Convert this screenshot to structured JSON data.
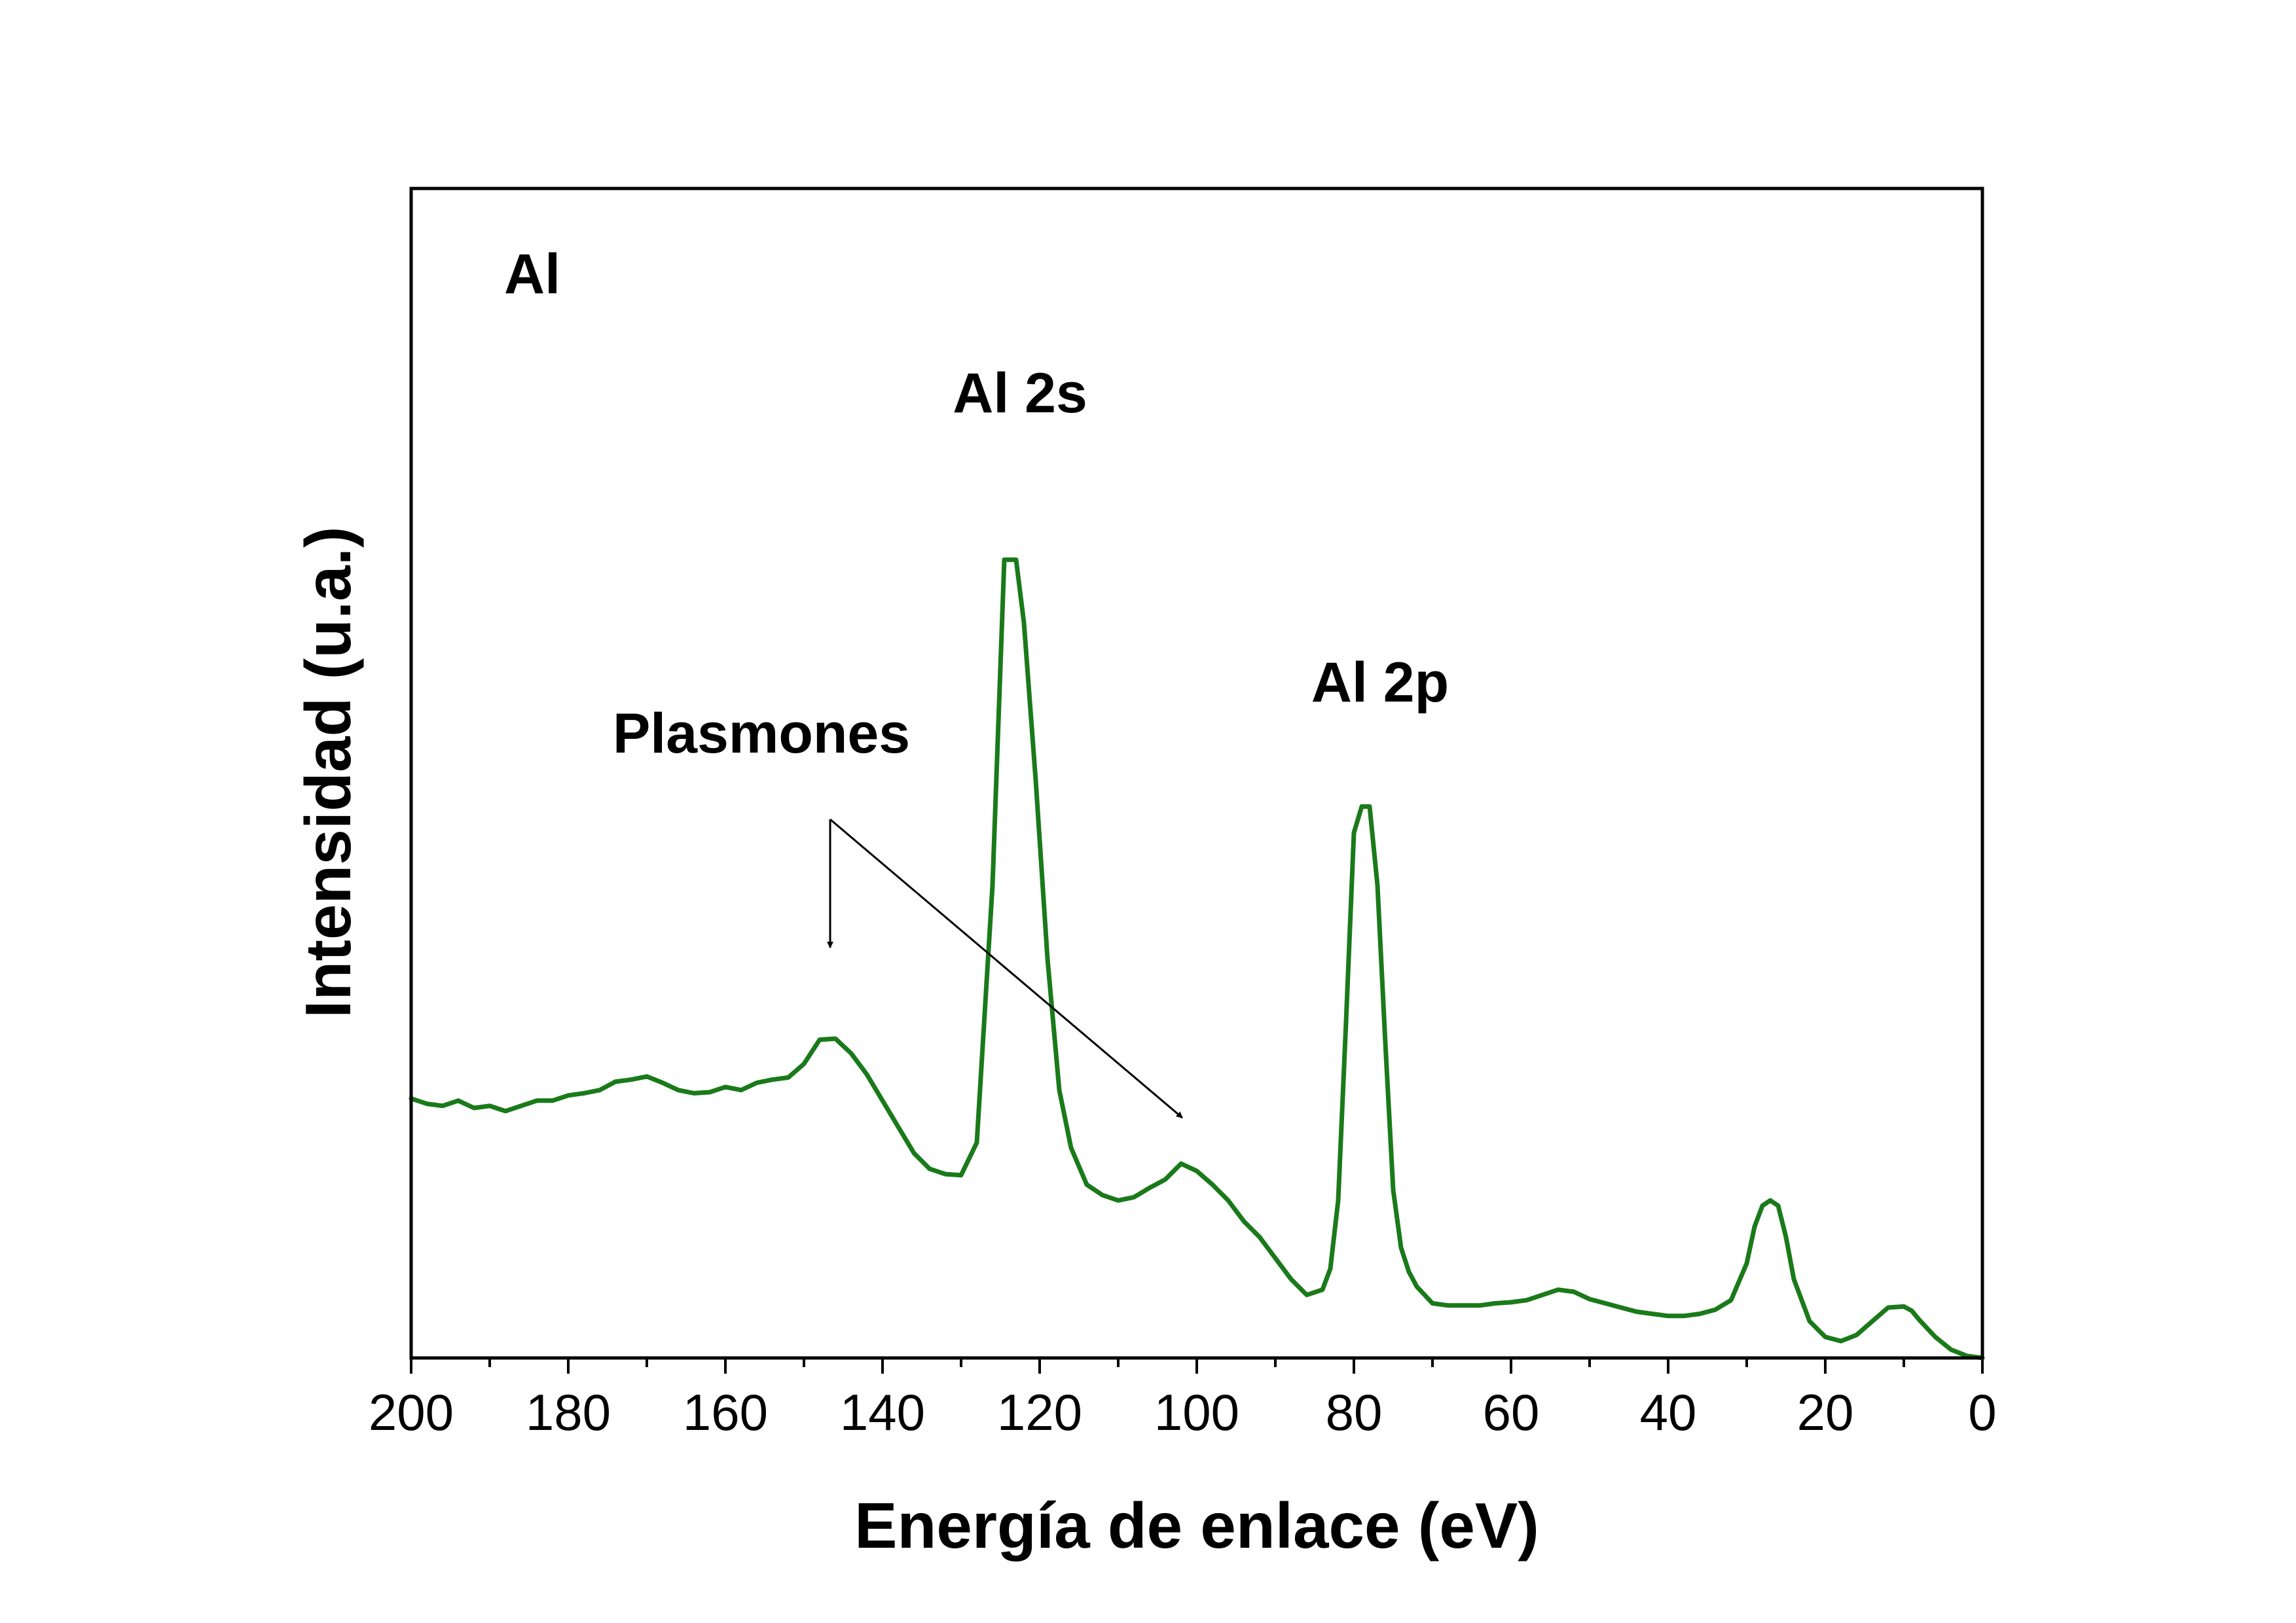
{
  "chart_data": {
    "type": "line",
    "title": "",
    "xlabel": "Energía de enlace (eV)",
    "ylabel": "Intensidad (u.a.)",
    "xlim": [
      200,
      0
    ],
    "ylim": [
      0,
      100
    ],
    "x_ticks": [
      200,
      180,
      160,
      140,
      120,
      100,
      80,
      60,
      40,
      20,
      0
    ],
    "x_tick_labels": [
      "200",
      "180",
      "160",
      "140",
      "120",
      "100",
      "80",
      "60",
      "40",
      "20",
      "0"
    ],
    "grid": false,
    "legend": "none",
    "series": [
      {
        "name": "Al",
        "color": "#1a7a1a",
        "x": [
          200,
          198,
          196,
          194,
          192,
          190,
          188,
          186,
          184,
          182,
          180,
          178,
          176,
          174,
          172,
          170,
          168,
          166,
          164,
          162,
          160,
          158,
          156,
          154,
          152,
          150,
          148,
          146,
          144,
          142,
          140,
          138,
          136,
          134,
          132,
          130,
          128,
          126,
          124.5,
          123,
          122,
          120.5,
          119,
          117.5,
          116,
          114,
          112,
          110,
          108,
          106,
          104,
          102,
          100,
          98,
          96,
          94,
          92,
          90,
          88,
          86,
          84,
          83,
          82,
          81,
          80,
          79,
          78,
          77,
          76,
          75,
          74,
          73,
          72,
          70,
          68,
          66,
          64,
          62,
          60,
          58,
          56,
          54,
          52,
          50,
          48,
          46,
          44,
          42,
          40,
          38,
          36,
          34,
          32,
          30,
          29,
          28,
          27,
          26,
          25,
          24,
          22,
          20,
          18,
          16,
          14,
          12,
          10,
          9,
          8,
          6,
          4,
          2,
          0
        ],
        "y": [
          24.7,
          24.2,
          24.0,
          24.5,
          23.8,
          24.0,
          23.5,
          24.0,
          24.5,
          24.5,
          25.0,
          25.2,
          25.5,
          26.3,
          26.5,
          26.8,
          26.2,
          25.5,
          25.2,
          25.3,
          25.8,
          25.5,
          26.2,
          26.5,
          26.7,
          28.0,
          30.3,
          30.4,
          29.0,
          27.0,
          24.5,
          22.0,
          19.5,
          18.0,
          17.5,
          17.4,
          20.5,
          45.0,
          76.0,
          76.0,
          70.0,
          55.0,
          38.0,
          25.5,
          20.0,
          16.5,
          15.5,
          15.0,
          15.3,
          16.2,
          17.0,
          18.5,
          17.8,
          16.5,
          15.0,
          13.0,
          11.5,
          9.5,
          7.5,
          6.0,
          6.5,
          8.5,
          15.0,
          32.0,
          50.0,
          52.5,
          52.5,
          45.0,
          30.0,
          16.0,
          10.5,
          8.2,
          6.8,
          5.2,
          5.0,
          5.0,
          5.0,
          5.2,
          5.3,
          5.5,
          6.0,
          6.5,
          6.3,
          5.6,
          5.2,
          4.8,
          4.4,
          4.2,
          4.0,
          4.0,
          4.2,
          4.6,
          5.5,
          9.0,
          12.5,
          14.5,
          15.0,
          14.5,
          11.5,
          7.5,
          3.5,
          2.0,
          1.6,
          2.2,
          3.5,
          4.8,
          4.9,
          4.5,
          3.6,
          2.0,
          0.8,
          0.2,
          0.0
        ]
      }
    ],
    "annotations": {
      "sample_label": "Al",
      "peak_2s_label": "Al 2s",
      "peak_2p_label": "Al 2p",
      "plasmon_label": "Plasmones"
    }
  }
}
